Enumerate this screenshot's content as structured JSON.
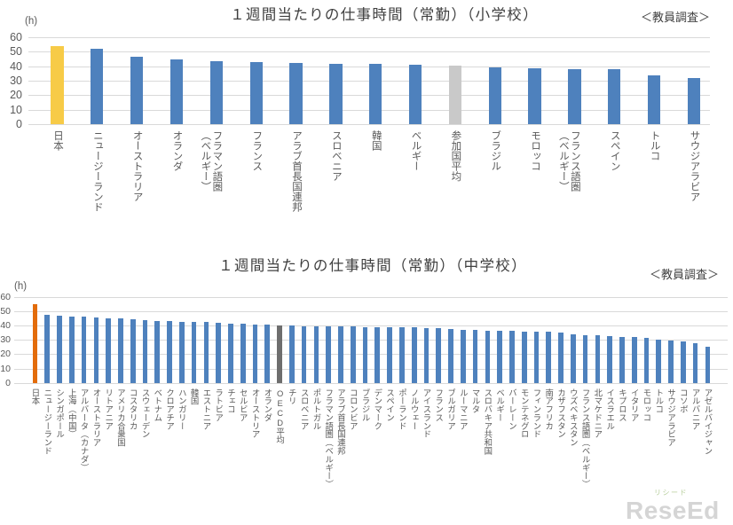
{
  "chart_data": [
    {
      "type": "bar",
      "title": "１週間当たりの仕事時間（常勤）（小学校）",
      "note": "＜教員調査＞",
      "unit": "(h)",
      "ylim": [
        0,
        60
      ],
      "yticks": [
        0,
        10,
        20,
        30,
        40,
        50,
        60
      ],
      "grid": true,
      "legend": "none",
      "default_color": "#4E81BD",
      "categories": [
        "日本",
        "ニュージーランド",
        "オーストラリア",
        "オランダ",
        "フラマン語圏\n（ベルギー）",
        "フランス",
        "アラブ首長国連邦",
        "スロベニア",
        "韓国",
        "ベルギー",
        "参加国平均",
        "ブラジル",
        "モロッコ",
        "フランス語圏\n（ベルギー）",
        "スペイン",
        "トルコ",
        "サウジアラビア"
      ],
      "values": [
        53.8,
        52.0,
        46.8,
        44.9,
        43.3,
        43.0,
        42.1,
        41.9,
        41.5,
        41.0,
        40.2,
        39.2,
        38.8,
        38.2,
        38.0,
        33.4,
        31.6
      ],
      "bar_colors": {
        "日本": "#F7CB47",
        "参加国平均": "#C9C9C9"
      }
    },
    {
      "type": "bar",
      "title": "１週間当たりの仕事時間（常勤）（中学校）",
      "note": "＜教員調査＞",
      "unit": "(h)",
      "ylim": [
        0,
        60
      ],
      "yticks": [
        0,
        10,
        20,
        30,
        40,
        50,
        60
      ],
      "grid": true,
      "legend": "none",
      "default_color": "#4E81BD",
      "categories": [
        "日本",
        "ニュージーランド",
        "シンガポール",
        "上海（中国）",
        "アルバータ（カナダ）",
        "オーストラリア",
        "リトアニア",
        "アメリカ合衆国",
        "コスタリカ",
        "スウェーデン",
        "ベトナム",
        "クロアチア",
        "ハンガリー",
        "韓国",
        "エストニア",
        "ラトビア",
        "チェコ",
        "セルビア",
        "オーストリア",
        "オランダ",
        "OECD平均",
        "チリ",
        "スロベニア",
        "ポルトガル",
        "フラマン語圏（ベルギー）",
        "アラブ首長国連邦",
        "コロンビア",
        "ブラジル",
        "デンマーク",
        "スペイン",
        "ポーランド",
        "ノルウェー",
        "アイスランド",
        "フランス",
        "ブルガリア",
        "ルーマニア",
        "マルタ",
        "スロバキア共和国",
        "ベルギー",
        "バーレーン",
        "モンテネグロ",
        "フィンランド",
        "南アフリカ",
        "カザフスタン",
        "ウズベキスタン",
        "フランス語圏（ベルギー）",
        "北マケドニア",
        "イスラエル",
        "キプロス",
        "イタリア",
        "モロッコ",
        "トルコ",
        "サウジアラビア",
        "コソボ",
        "アルバニア",
        "アゼルバイジャン"
      ],
      "values": [
        55.3,
        47.4,
        47.0,
        46.6,
        46.4,
        46.0,
        45.0,
        44.8,
        44.6,
        43.6,
        43.4,
        43.0,
        42.7,
        42.6,
        42.4,
        42.0,
        41.3,
        41.2,
        40.7,
        40.5,
        40.4,
        39.9,
        39.8,
        39.7,
        39.6,
        39.4,
        39.3,
        39.2,
        39.1,
        38.9,
        38.8,
        38.7,
        38.4,
        38.1,
        37.5,
        37.3,
        37.2,
        36.7,
        36.5,
        36.2,
        35.9,
        35.7,
        35.5,
        35.3,
        34.2,
        33.6,
        33.4,
        32.8,
        32.3,
        32.1,
        31.5,
        30.5,
        29.5,
        29.0,
        28.0,
        25.0
      ],
      "bar_colors": {
        "日本": "#E36C0A",
        "OECD平均": "#6E6E6E"
      }
    }
  ],
  "watermark": {
    "text": "ReseEd",
    "ruby": "リシード"
  }
}
